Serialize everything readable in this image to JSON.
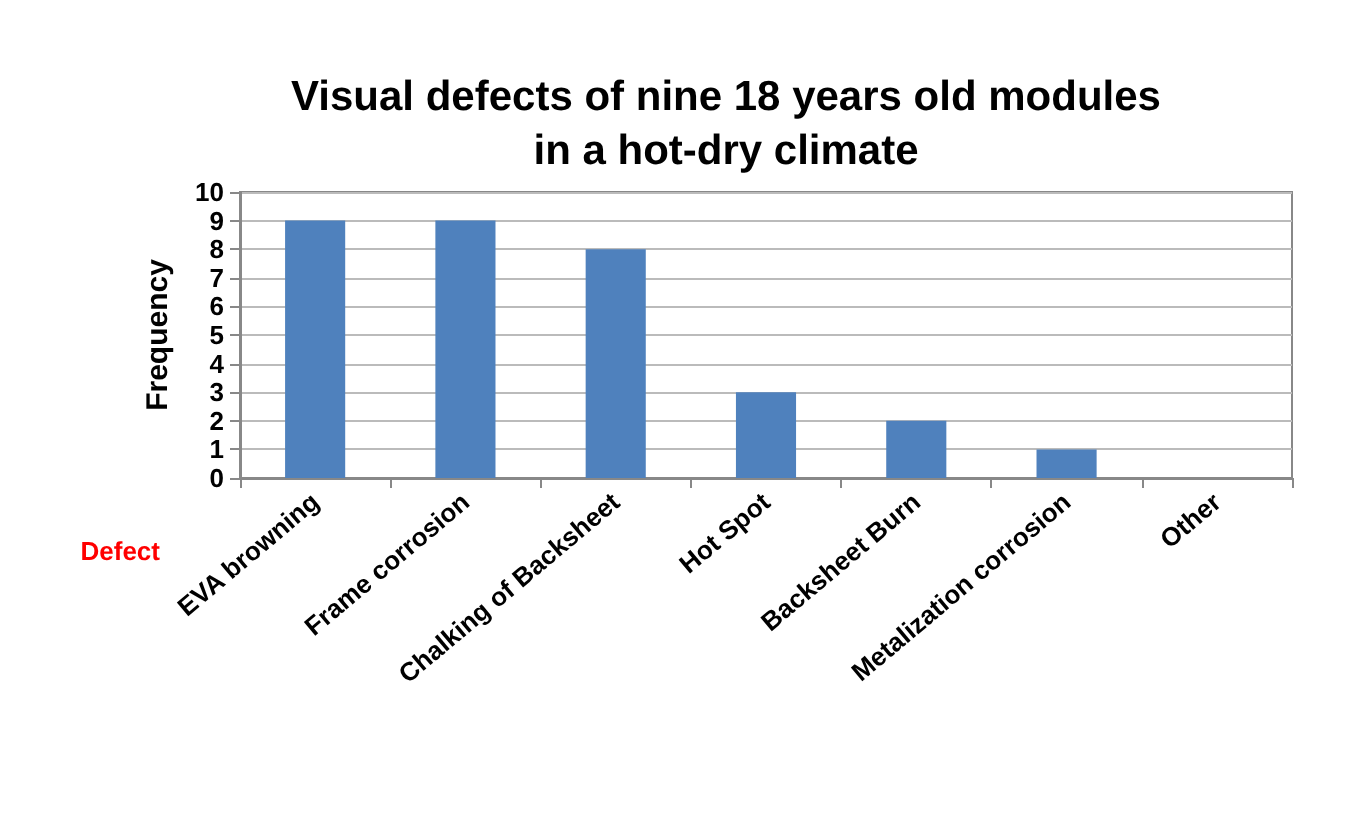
{
  "chart_data": {
    "type": "bar",
    "title": "Visual defects of nine 18 years old modules\nin a hot-dry climate",
    "xlabel": "Defect",
    "ylabel": "Frequency",
    "categories": [
      "EVA browning",
      "Frame corrosion",
      "Chalking of Backsheet",
      "Hot Spot",
      "Backsheet Burn",
      "Metalization corrosion",
      "Other"
    ],
    "values": [
      9,
      9,
      8,
      3,
      2,
      1,
      0
    ],
    "color": "#4f81bd",
    "ylim": [
      0,
      10
    ],
    "yticks": [
      0,
      1,
      2,
      3,
      4,
      5,
      6,
      7,
      8,
      9,
      10
    ],
    "grid": "y"
  }
}
